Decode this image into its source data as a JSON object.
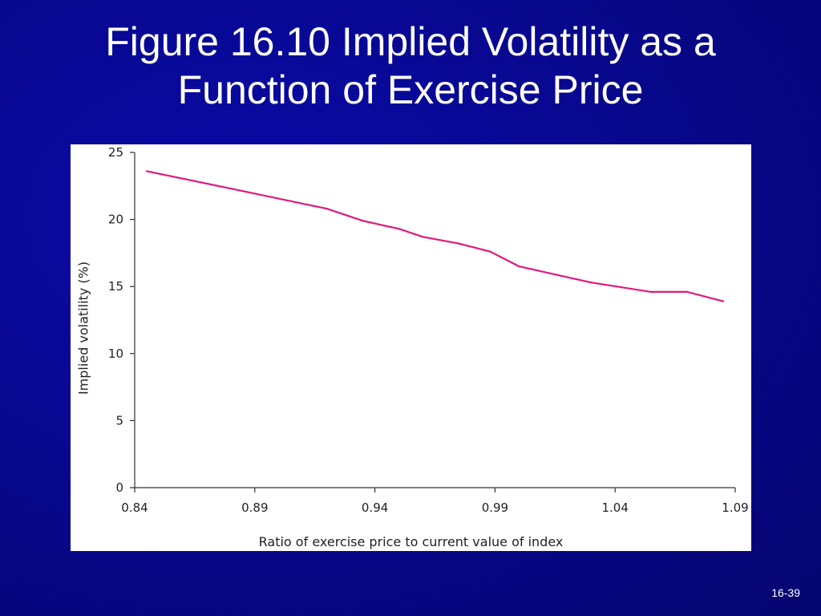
{
  "slide": {
    "title_line1": "Figure 16.10 Implied Volatility as a",
    "title_line2": "Function of Exercise Price",
    "slide_number": "16-39"
  },
  "chart_data": {
    "type": "line",
    "title": "",
    "xlabel": "Ratio of exercise price to current value of index",
    "ylabel": "Implied volatility (%)",
    "xlim": [
      0.84,
      1.09
    ],
    "ylim": [
      0,
      25
    ],
    "x_ticks": [
      "0.84",
      "0.89",
      "0.94",
      "0.99",
      "1.04",
      "1.09"
    ],
    "y_ticks": [
      "0",
      "5",
      "10",
      "15",
      "20",
      "25"
    ],
    "grid": false,
    "line_color": "#e0197d",
    "series": [
      {
        "x": [
          0.845,
          0.88,
          0.92,
          0.935,
          0.95,
          0.96,
          0.975,
          0.988,
          1.0,
          1.015,
          1.03,
          1.055,
          1.07,
          1.085
        ],
        "y": [
          23.6,
          22.3,
          20.8,
          19.9,
          19.3,
          18.7,
          18.2,
          17.6,
          16.5,
          15.9,
          15.3,
          14.6,
          14.6,
          13.9
        ]
      }
    ]
  }
}
